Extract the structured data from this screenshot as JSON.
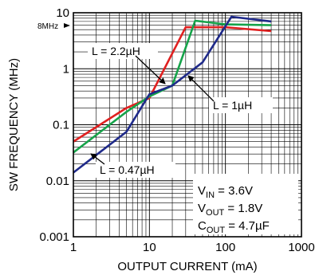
{
  "chart_data": {
    "type": "line",
    "xlabel": "OUTPUT CURRENT (mA)",
    "ylabel": "SW FREQUENCY (MHz)",
    "x_scale": "log",
    "y_scale": "log",
    "xlim": [
      1,
      1000
    ],
    "ylim": [
      0.001,
      10
    ],
    "grid": true,
    "x_ticks": [
      "1",
      "10",
      "100",
      "1000"
    ],
    "y_ticks": [
      "0.001",
      "0.01",
      "0.1",
      "1",
      "10"
    ],
    "marker_label": "8MHz",
    "series": [
      {
        "name": "L = 2.2µH",
        "color": "#e02020",
        "x": [
          1,
          5,
          10,
          30,
          100,
          400
        ],
        "y": [
          0.05,
          0.2,
          0.3,
          5.5,
          5.5,
          4.7
        ]
      },
      {
        "name": "L = 1µH",
        "color": "#16a34a",
        "x": [
          1,
          5,
          10,
          20,
          40,
          100,
          400
        ],
        "y": [
          0.032,
          0.17,
          0.32,
          0.5,
          7.2,
          6.2,
          6.0
        ]
      },
      {
        "name": "L = 0.47µH",
        "color": "#1f2a8a",
        "x": [
          1,
          5,
          10,
          20,
          50,
          120,
          400
        ],
        "y": [
          0.014,
          0.075,
          0.35,
          0.5,
          1.3,
          8.5,
          7.0
        ]
      }
    ],
    "conditions": [
      {
        "main": "V",
        "sub": "IN",
        "rest": " = 3.6V"
      },
      {
        "main": "V",
        "sub": "OUT",
        "rest": " = 1.8V"
      },
      {
        "main": "C",
        "sub": "OUT",
        "rest": " = 4.7µF"
      }
    ]
  }
}
